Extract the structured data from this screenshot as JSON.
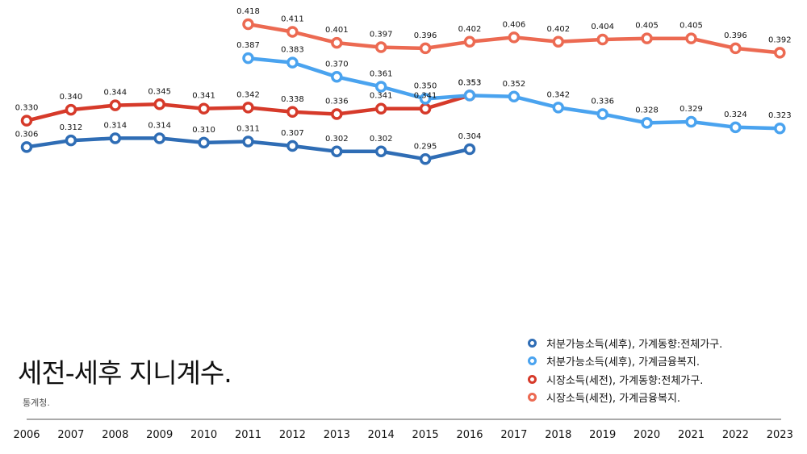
{
  "title": "세전-세후 지니계수.",
  "source": "통계청.",
  "legend": [
    {
      "label": "처분가능소득(세후), 가계동향:전체가구.",
      "color": "#2f6db5"
    },
    {
      "label": " 처분가능소득(세후), 가계금융복지.",
      "color": "#4aa3ef"
    },
    {
      "label": "시장소득(세전), 가계동향:전체가구.",
      "color": "#d63a2a"
    },
    {
      "label": "시장소득(세전), 가계금융복지.",
      "color": "#ec6a52"
    }
  ],
  "chart_data": {
    "type": "line",
    "x": [
      "2006",
      "2007",
      "2008",
      "2009",
      "2010",
      "2011",
      "2012",
      "2013",
      "2014",
      "2015",
      "2016",
      "2017",
      "2018",
      "2019",
      "2020",
      "2021",
      "2022",
      "2023"
    ],
    "grid": false,
    "legend_position": "bottom-right",
    "series": [
      {
        "name": "처분가능소득(세후), 가계동향:전체가구.",
        "color": "#2f6db5",
        "values": [
          0.306,
          0.312,
          0.314,
          0.314,
          0.31,
          0.311,
          0.307,
          0.302,
          0.302,
          0.295,
          0.304,
          null,
          null,
          null,
          null,
          null,
          null,
          null
        ],
        "labels": [
          "0.306",
          "0.312",
          "0.314",
          "0.314",
          "0.310",
          "0.311",
          "0.307",
          "0.302",
          "0.302",
          "0.295",
          "0.304",
          null,
          null,
          null,
          null,
          null,
          null,
          null
        ]
      },
      {
        "name": " 처분가능소득(세후), 가계금융복지.",
        "color": "#4aa3ef",
        "values": [
          null,
          null,
          null,
          null,
          null,
          0.387,
          0.383,
          0.37,
          0.361,
          0.35,
          0.353,
          0.352,
          0.342,
          0.336,
          0.328,
          0.329,
          0.324,
          0.323
        ],
        "labels": [
          null,
          null,
          null,
          null,
          null,
          "0.387",
          "0.383",
          "0.370",
          "0.361",
          "0.350",
          "0.353",
          "0.352",
          "0.342",
          "0.336",
          "0.328",
          "0.329",
          "0.324",
          "0.323"
        ]
      },
      {
        "name": "시장소득(세전), 가계동향:전체가구.",
        "color": "#d63a2a",
        "values": [
          0.33,
          0.34,
          0.344,
          0.345,
          0.341,
          0.342,
          0.338,
          0.336,
          0.341,
          0.341,
          0.353,
          null,
          null,
          null,
          null,
          null,
          null,
          null
        ],
        "labels": [
          "0.330",
          "0.340",
          "0.344",
          "0.345",
          "0.341",
          "0.342",
          "0.338",
          "0.336",
          "0.341",
          "0.341",
          "0.353",
          null,
          null,
          null,
          null,
          null,
          null,
          null
        ]
      },
      {
        "name": "시장소득(세전), 가계금융복지.",
        "color": "#ec6a52",
        "values": [
          null,
          null,
          null,
          null,
          null,
          0.418,
          0.411,
          0.401,
          0.397,
          0.396,
          0.402,
          0.406,
          0.402,
          0.404,
          0.405,
          0.405,
          0.396,
          0.392
        ],
        "labels": [
          null,
          null,
          null,
          null,
          null,
          "0.418",
          "0.411",
          "0.401",
          "0.397",
          "0.396",
          "0.402",
          "0.406",
          "0.402",
          "0.404",
          "0.405",
          "0.405",
          "0.396",
          "0.392"
        ]
      }
    ]
  }
}
